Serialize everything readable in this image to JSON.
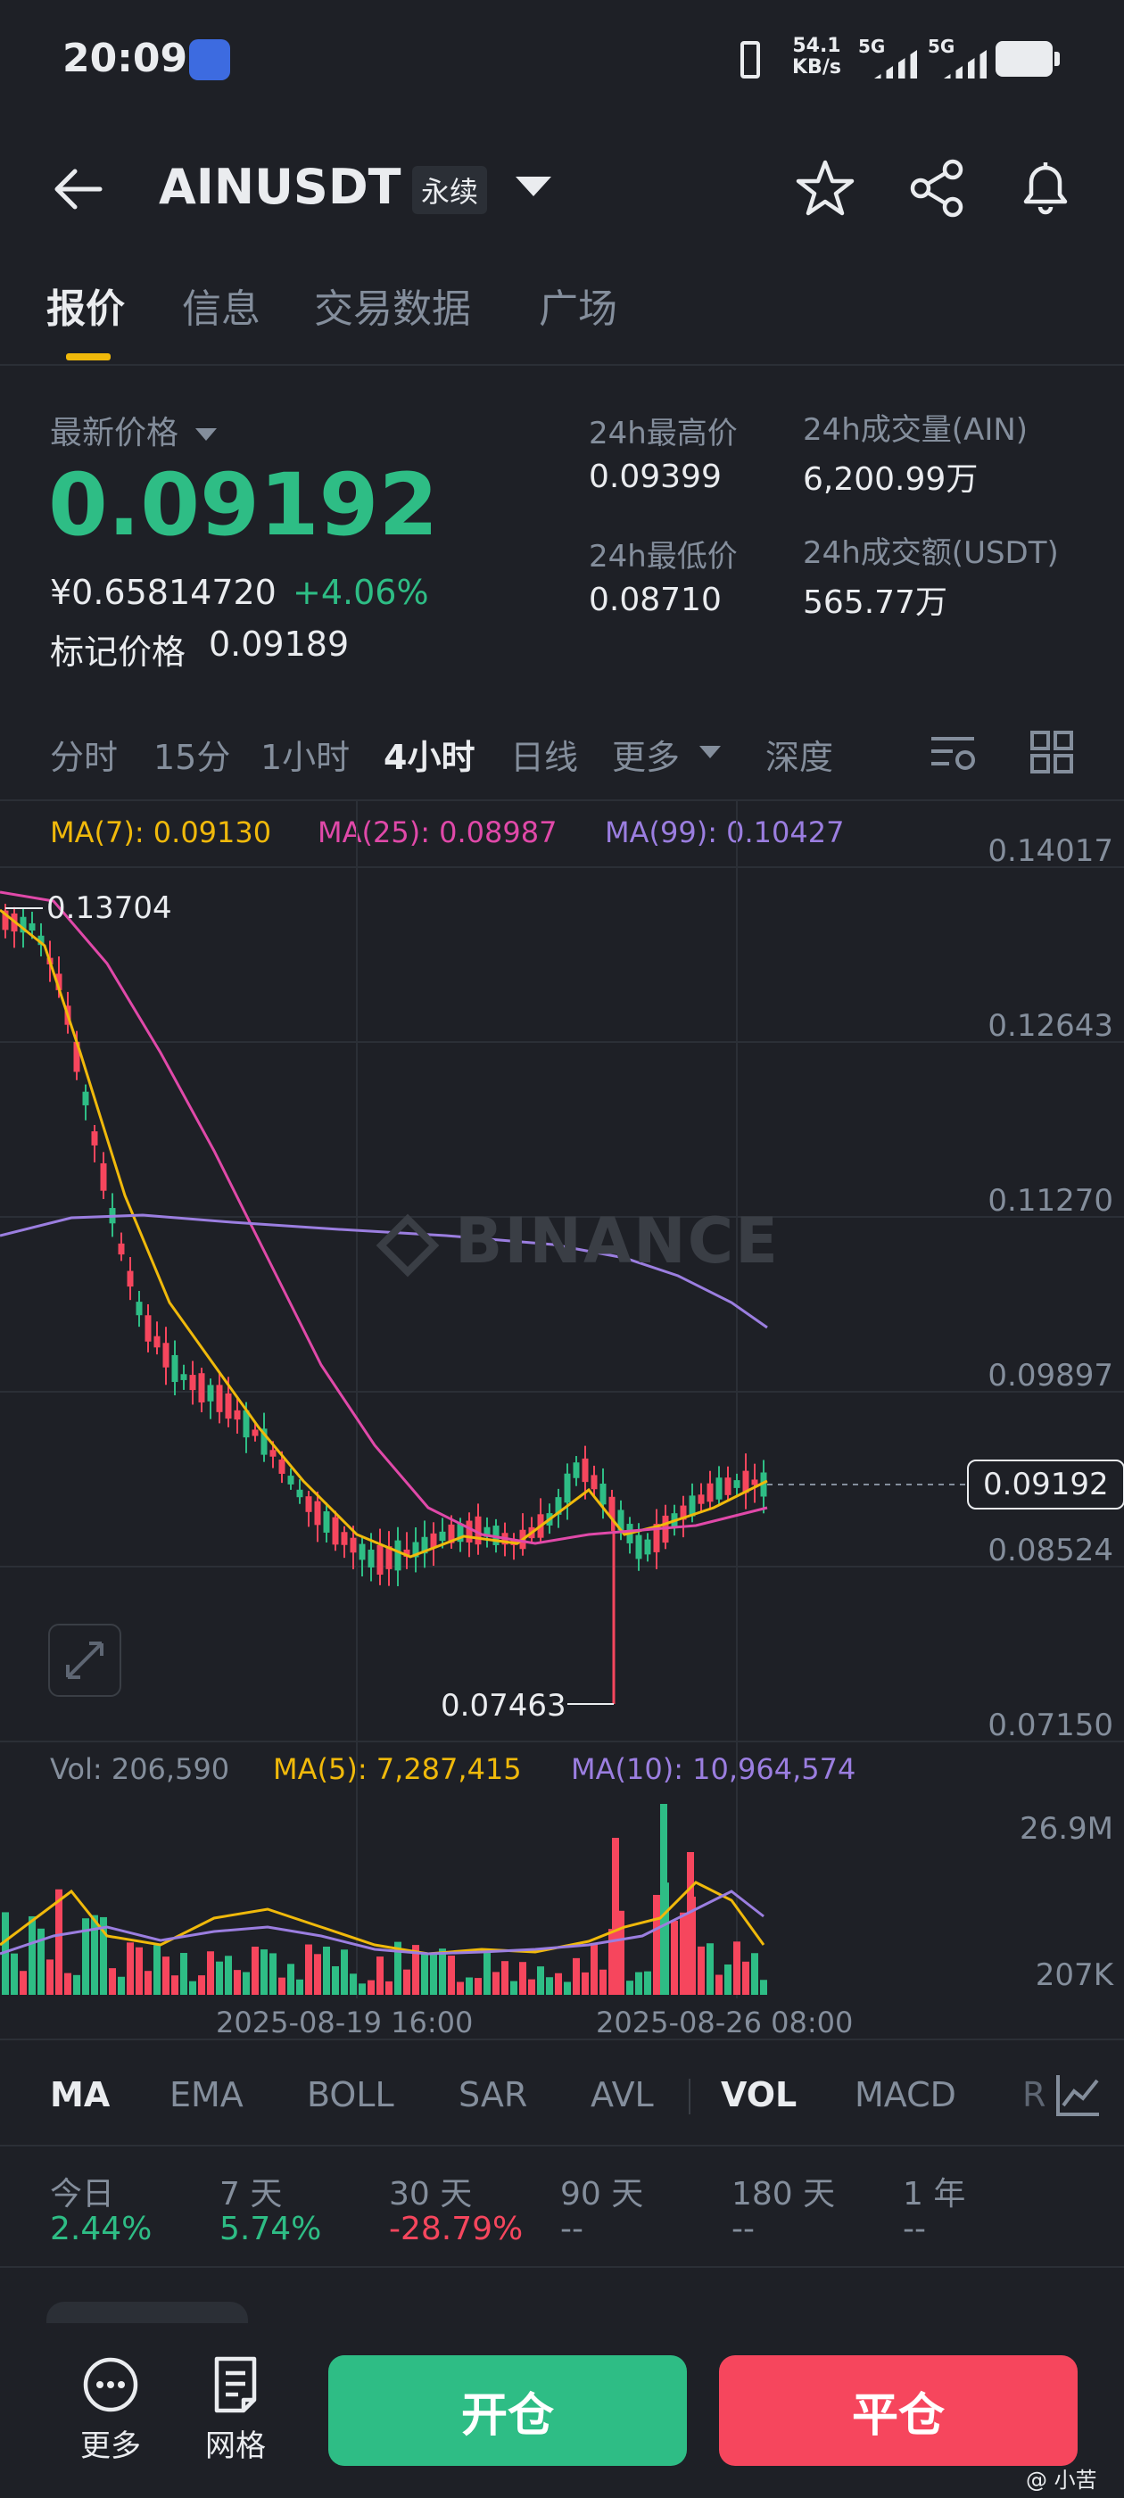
{
  "status_bar": {
    "time": "20:09",
    "net_speed_value": "54.1",
    "net_speed_unit": "KB/s",
    "sim1": "5G",
    "sim2": "5G"
  },
  "header": {
    "title": "AINUSDT",
    "badge": "永续"
  },
  "tabs": [
    "报价",
    "信息",
    "交易数据",
    "广场"
  ],
  "quote": {
    "latest_label": "最新价格",
    "price": "0.09192",
    "cny_price": "¥0.65814720",
    "change": "+4.06%",
    "mark_label": "标记价格",
    "mark_price": "0.09189",
    "high_label": "24h最高价",
    "high": "0.09399",
    "low_label": "24h最低价",
    "low": "0.08710",
    "vol_label": "24h成交量(AIN)",
    "vol": "6,200.99万",
    "turnover_label": "24h成交额(USDT)",
    "turnover": "565.77万"
  },
  "intervals": [
    "分时",
    "15分",
    "1小时",
    "4小时",
    "日线",
    "更多",
    "深度"
  ],
  "ma_legend": {
    "ma7": "MA(7): 0.09130",
    "ma25": "MA(25): 0.08987",
    "ma99": "MA(99): 0.10427"
  },
  "price_axis": [
    "0.14017",
    "0.12643",
    "0.11270",
    "0.09897",
    "0.08524",
    "0.07150"
  ],
  "watermark": "BINANCE",
  "high_marker": "0.13704",
  "low_marker": "0.07463",
  "last_price_tag": "0.09192",
  "volume_legend": {
    "vol": "Vol: 206,590",
    "ma5": "MA(5): 7,287,415",
    "ma10": "MA(10): 10,964,574"
  },
  "volume_axis": [
    "26.9M",
    "207K"
  ],
  "time_axis": [
    "2025-08-19 16:00",
    "2025-08-26 08:00"
  ],
  "indicators": [
    "MA",
    "EMA",
    "BOLL",
    "SAR",
    "AVL",
    "VOL",
    "MACD",
    "R"
  ],
  "returns": [
    {
      "label": "今日",
      "value": "2.44%"
    },
    {
      "label": "7 天",
      "value": "5.74%"
    },
    {
      "label": "30 天",
      "value": "-28.79%"
    },
    {
      "label": "90 天",
      "value": "--"
    },
    {
      "label": "180 天",
      "value": "--"
    },
    {
      "label": "1 年",
      "value": "--"
    }
  ],
  "bottom": {
    "more": "更多",
    "grid": "网格",
    "open": "开仓",
    "close": "平仓",
    "credit": "@ 小苦"
  },
  "colors": {
    "up": "#2ebd85",
    "down": "#f6465d",
    "ma7": "#f0b90b",
    "ma25": "#e049a9",
    "ma99": "#9b7ee0",
    "bg": "#1e2026"
  }
}
